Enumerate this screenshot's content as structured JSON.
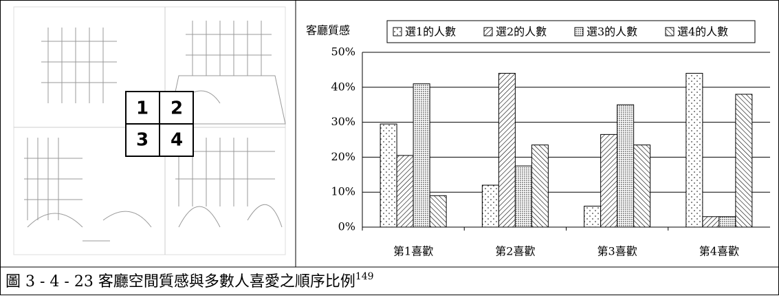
{
  "image_labels": [
    "1",
    "2",
    "3",
    "4"
  ],
  "chart_data": {
    "type": "bar",
    "title": "客廳質感",
    "categories": [
      "第1喜歡",
      "第2喜歡",
      "第3喜歡",
      "第4喜歡"
    ],
    "series": [
      {
        "name": "選1的人數",
        "color": "#000000",
        "pattern": "sparse-dots",
        "values": [
          29.5,
          12,
          6,
          44
        ]
      },
      {
        "name": "選2的人數",
        "color": "#000000",
        "pattern": "hatch-right",
        "values": [
          20.5,
          44,
          26.5,
          3
        ]
      },
      {
        "name": "選3的人數",
        "color": "#000000",
        "pattern": "dense-dots",
        "values": [
          41,
          17.5,
          35,
          3
        ]
      },
      {
        "name": "選4的人數",
        "color": "#000000",
        "pattern": "hatch-left",
        "values": [
          9,
          23.5,
          23.5,
          38
        ]
      }
    ],
    "ylim": [
      0,
      50
    ],
    "yticks": [
      {
        "value": 0,
        "label": "0%"
      },
      {
        "value": 10,
        "label": "10%"
      },
      {
        "value": 20,
        "label": "20%"
      },
      {
        "value": 30,
        "label": "30%"
      },
      {
        "value": 40,
        "label": "40%"
      },
      {
        "value": 50,
        "label": "50%"
      }
    ],
    "grid": true
  },
  "caption": {
    "text": "圖 3 - 4 - 23 客廳空間質感與多數人喜愛之順序比例",
    "footnote": "149"
  }
}
